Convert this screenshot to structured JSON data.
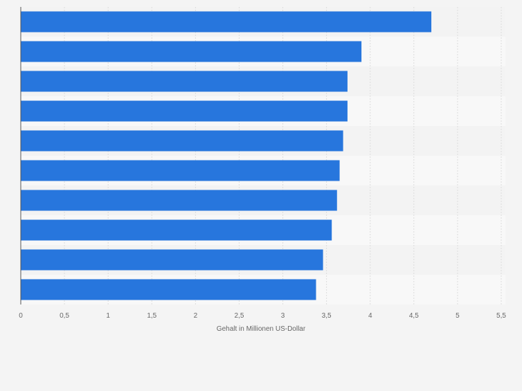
{
  "chart_data": {
    "type": "bar",
    "orientation": "horizontal",
    "categories": [
      "",
      "",
      "",
      "",
      "",
      "",
      "",
      "",
      "",
      ""
    ],
    "values": [
      4.7,
      3.9,
      3.74,
      3.74,
      3.69,
      3.65,
      3.62,
      3.56,
      3.46,
      3.38
    ],
    "xlabel": "Gehalt in Millionen US-Dollar",
    "xlim": [
      0,
      5.5
    ],
    "xticks": [
      0,
      0.5,
      1,
      1.5,
      2,
      2.5,
      3,
      3.5,
      4,
      4.5,
      5,
      5.5
    ],
    "xtick_labels": [
      "0",
      "0,5",
      "1",
      "1,5",
      "2",
      "2,5",
      "3",
      "3,5",
      "4",
      "4,5",
      "5",
      "5,5"
    ],
    "grid": "vertical",
    "colors": {
      "bar": "#2776dd",
      "band_a": "#f3f3f3",
      "band_b": "#f8f8f8",
      "grid": "#dcdcdc",
      "axis": "#555555",
      "text": "#666666",
      "page": "#f4f4f4"
    }
  }
}
